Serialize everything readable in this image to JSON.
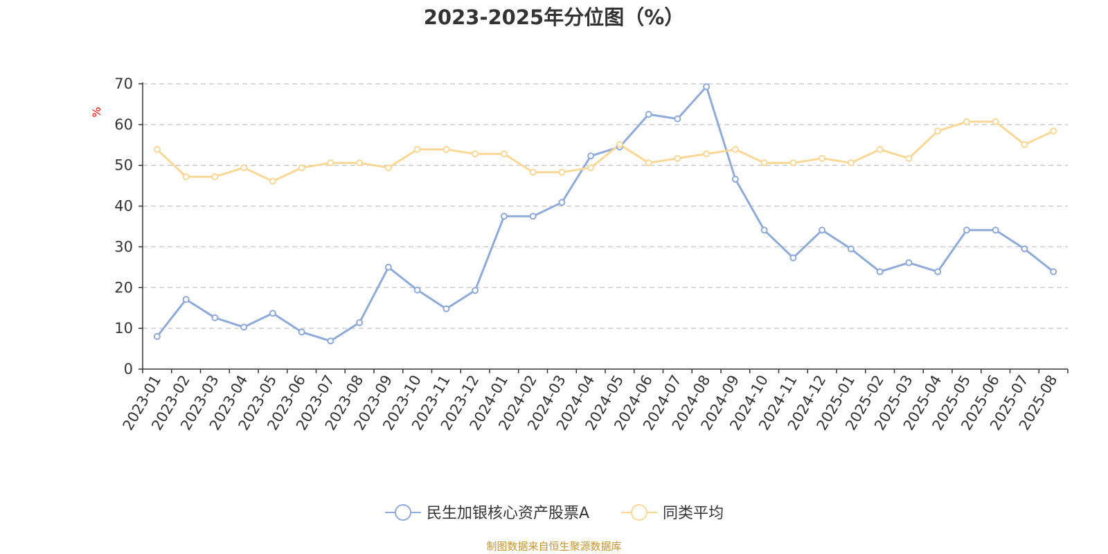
{
  "chart_data": {
    "type": "line",
    "title": "2023-2025年分位图（%）",
    "ylabel": "%",
    "ylim": [
      0,
      70
    ],
    "yticks": [
      0,
      10,
      20,
      30,
      40,
      50,
      60,
      70
    ],
    "grid": true,
    "legend_position": "bottom",
    "categories": [
      "2023-01",
      "2023-02",
      "2023-03",
      "2023-04",
      "2023-05",
      "2023-06",
      "2023-07",
      "2023-08",
      "2023-09",
      "2023-10",
      "2023-11",
      "2023-12",
      "2024-01",
      "2024-02",
      "2024-03",
      "2024-04",
      "2024-05",
      "2024-06",
      "2024-07",
      "2024-08",
      "2024-09",
      "2024-10",
      "2024-11",
      "2024-12",
      "2025-01",
      "2025-02",
      "2025-03",
      "2025-04",
      "2025-05",
      "2025-06",
      "2025-07",
      "2025-08"
    ],
    "series": [
      {
        "name": "民生加银核心资产股票A",
        "color": "#8eaad8",
        "values": [
          8.0,
          17.1,
          12.6,
          10.3,
          13.7,
          9.1,
          6.9,
          11.4,
          25.0,
          19.4,
          14.8,
          19.3,
          37.5,
          37.5,
          40.9,
          52.3,
          54.5,
          62.5,
          61.4,
          69.3,
          46.6,
          34.1,
          27.3,
          34.1,
          29.5,
          23.9,
          26.1,
          23.9,
          34.1,
          34.1,
          29.5,
          23.9
        ]
      },
      {
        "name": "同类平均",
        "color": "#fad795",
        "values": [
          53.9,
          47.2,
          47.2,
          49.4,
          46.1,
          49.4,
          50.6,
          50.6,
          49.4,
          53.9,
          53.9,
          52.8,
          52.8,
          48.3,
          48.3,
          49.4,
          55.1,
          50.6,
          51.7,
          52.8,
          53.9,
          50.6,
          50.6,
          51.7,
          50.6,
          53.9,
          51.7,
          58.4,
          60.7,
          60.7,
          55.1,
          58.4
        ]
      }
    ]
  },
  "footer": "制图数据来自恒生聚源数据库"
}
